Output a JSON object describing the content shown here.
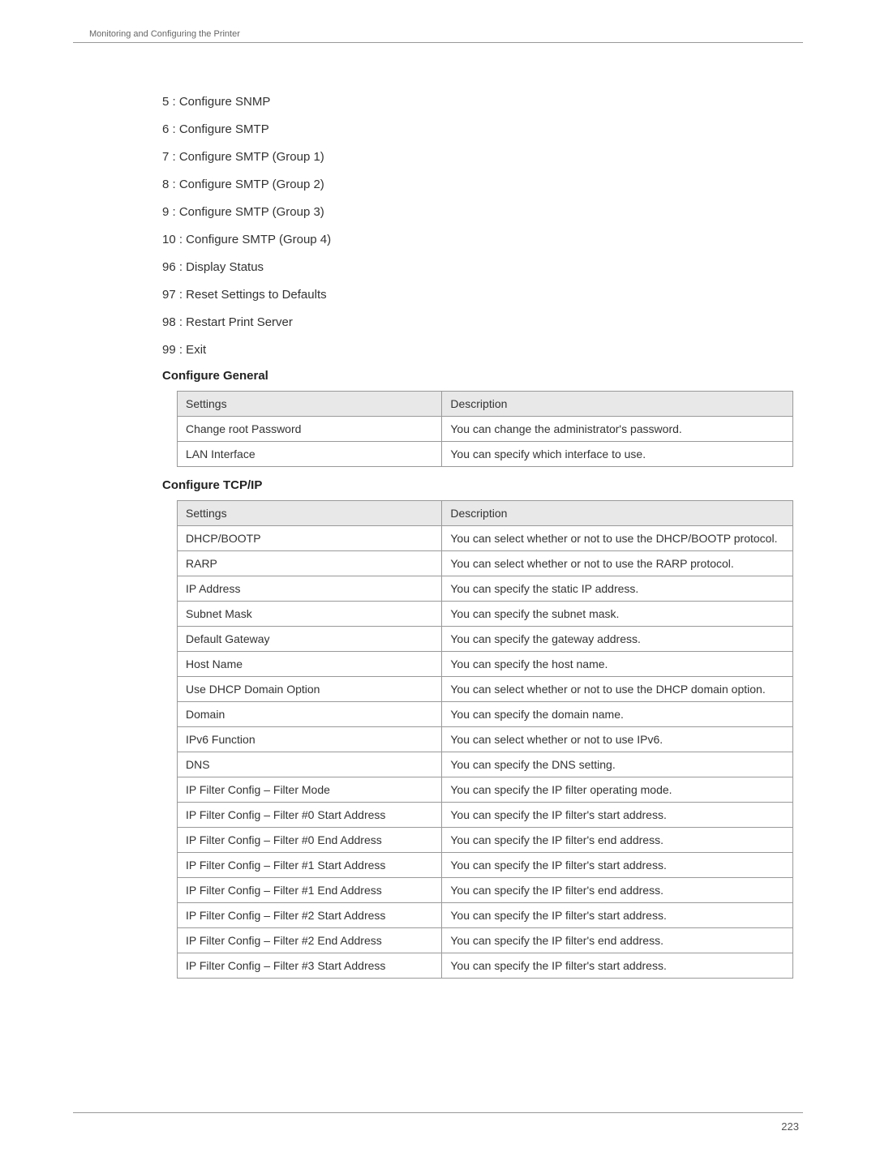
{
  "header": {
    "breadcrumb": "Monitoring and Configuring the Printer"
  },
  "menuItems": [
    "5 : Configure SNMP",
    "6 : Configure SMTP",
    "7 : Configure SMTP (Group 1)",
    "8 : Configure SMTP (Group 2)",
    "9 : Configure SMTP (Group 3)",
    "10 : Configure SMTP (Group 4)",
    "96 : Display Status",
    "97 : Reset Settings to Defaults",
    "98 : Restart Print Server",
    "99 : Exit"
  ],
  "generalSection": {
    "heading": "Configure General",
    "headers": {
      "settings": "Settings",
      "description": "Description"
    },
    "rows": [
      {
        "setting": "Change root Password",
        "description": "You can change the administrator's password."
      },
      {
        "setting": "LAN Interface",
        "description": "You can specify which interface to use."
      }
    ]
  },
  "tcpipSection": {
    "heading": "Configure TCP/IP",
    "headers": {
      "settings": "Settings",
      "description": "Description"
    },
    "rows": [
      {
        "setting": "DHCP/BOOTP",
        "description": "You can select whether or not to use the DHCP/BOOTP protocol."
      },
      {
        "setting": "RARP",
        "description": "You can select whether or not to use the RARP protocol."
      },
      {
        "setting": "IP Address",
        "description": "You can specify the static IP address."
      },
      {
        "setting": "Subnet Mask",
        "description": "You can specify the subnet mask."
      },
      {
        "setting": "Default Gateway",
        "description": "You can specify the gateway address."
      },
      {
        "setting": "Host Name",
        "description": "You can specify the host name."
      },
      {
        "setting": "Use DHCP Domain Option",
        "description": "You can select whether or not to use the DHCP domain option."
      },
      {
        "setting": "Domain",
        "description": "You can specify the domain name."
      },
      {
        "setting": "IPv6 Function",
        "description": "You can select whether or not to use IPv6."
      },
      {
        "setting": "DNS",
        "description": "You can specify the DNS setting."
      },
      {
        "setting": "IP Filter Config – Filter Mode",
        "description": "You can specify the IP filter operating mode."
      },
      {
        "setting": "IP Filter Config – Filter #0 Start Address",
        "description": "You can specify the IP filter's start address."
      },
      {
        "setting": "IP Filter Config – Filter #0 End Address",
        "description": "You can specify the IP filter's end address."
      },
      {
        "setting": "IP Filter Config – Filter #1 Start Address",
        "description": "You can specify the IP filter's start address."
      },
      {
        "setting": "IP Filter Config – Filter #1 End Address",
        "description": "You can specify the IP filter's end address."
      },
      {
        "setting": "IP Filter Config – Filter #2 Start Address",
        "description": "You can specify the IP filter's start address."
      },
      {
        "setting": "IP Filter Config – Filter #2 End Address",
        "description": "You can specify the IP filter's end address."
      },
      {
        "setting": "IP Filter Config – Filter #3 Start Address",
        "description": "You can specify the IP filter's start address."
      }
    ]
  },
  "pageNumber": "223"
}
